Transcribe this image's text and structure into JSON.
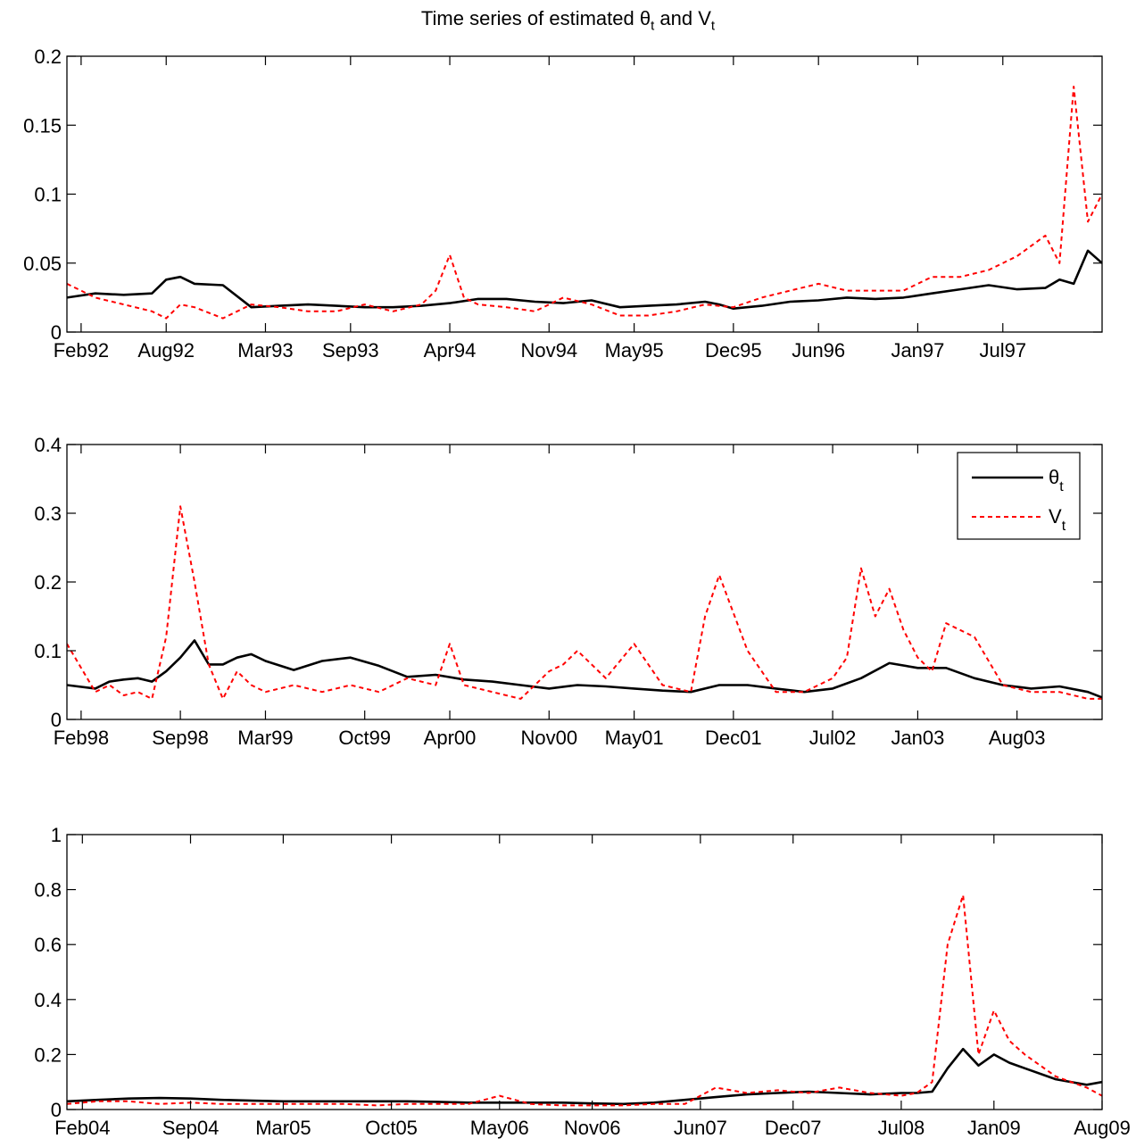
{
  "figure": {
    "title_text": "Time series of estimated ",
    "title_theta": "θ",
    "title_theta_sub": "t",
    "title_and": " and V",
    "title_v_sub": "t"
  },
  "legend": {
    "entries": [
      {
        "symbol": "θ",
        "sub": "t",
        "color": "#000000",
        "style": "solid"
      },
      {
        "symbol": "V",
        "sub": "t",
        "color": "#ff0000",
        "style": "dotted"
      }
    ]
  },
  "colors": {
    "theta": "#000000",
    "v": "#ff0000",
    "axis": "#000000",
    "background": "#ffffff"
  },
  "chart_data": [
    {
      "type": "line",
      "x_ticks": [
        "Feb92",
        "Aug92",
        "Mar93",
        "Sep93",
        "Apr94",
        "Nov94",
        "May95",
        "Dec95",
        "Jun96",
        "Jan97",
        "Jul97"
      ],
      "x_range": [
        "Jan92",
        "Feb98"
      ],
      "ylim": [
        0,
        0.2
      ],
      "y_ticks": [
        "0",
        "0.05",
        "0.1",
        "0.15",
        "0.2"
      ],
      "grid": false,
      "series": [
        {
          "name": "θt",
          "style": "solid",
          "color": "#000000",
          "x": [
            "Jan92",
            "Mar92",
            "May92",
            "Jul92",
            "Aug92",
            "Sep92",
            "Oct92",
            "Dec92",
            "Feb93",
            "Apr93",
            "Jun93",
            "Aug93",
            "Oct93",
            "Dec93",
            "Feb94",
            "Apr94",
            "Jun94",
            "Aug94",
            "Oct94",
            "Dec94",
            "Feb95",
            "Apr95",
            "Jun95",
            "Aug95",
            "Oct95",
            "Nov95",
            "Dec95",
            "Feb96",
            "Apr96",
            "Jun96",
            "Aug96",
            "Oct96",
            "Dec96",
            "Feb97",
            "Apr97",
            "Jun97",
            "Aug97",
            "Oct97",
            "Nov97",
            "Dec97",
            "Jan98",
            "Feb98"
          ],
          "values": [
            0.025,
            0.028,
            0.027,
            0.028,
            0.038,
            0.04,
            0.035,
            0.034,
            0.018,
            0.019,
            0.02,
            0.019,
            0.018,
            0.018,
            0.019,
            0.021,
            0.024,
            0.024,
            0.022,
            0.021,
            0.023,
            0.018,
            0.019,
            0.02,
            0.022,
            0.02,
            0.017,
            0.019,
            0.022,
            0.023,
            0.025,
            0.024,
            0.025,
            0.028,
            0.031,
            0.034,
            0.031,
            0.032,
            0.038,
            0.035,
            0.059,
            0.05
          ]
        },
        {
          "name": "Vt",
          "style": "dotted",
          "color": "#ff0000",
          "x": [
            "Jan92",
            "Mar92",
            "May92",
            "Jul92",
            "Aug92",
            "Sep92",
            "Oct92",
            "Dec92",
            "Feb93",
            "Apr93",
            "Jun93",
            "Aug93",
            "Oct93",
            "Dec93",
            "Feb94",
            "Mar94",
            "Apr94",
            "May94",
            "Jun94",
            "Aug94",
            "Oct94",
            "Dec94",
            "Feb95",
            "Apr95",
            "Jun95",
            "Aug95",
            "Oct95",
            "Dec95",
            "Feb96",
            "Apr96",
            "Jun96",
            "Aug96",
            "Oct96",
            "Dec96",
            "Feb97",
            "Apr97",
            "Jun97",
            "Aug97",
            "Oct97",
            "Nov97",
            "Dec97",
            "Jan98",
            "Feb98"
          ],
          "values": [
            0.035,
            0.025,
            0.02,
            0.015,
            0.01,
            0.02,
            0.018,
            0.01,
            0.02,
            0.018,
            0.015,
            0.015,
            0.02,
            0.015,
            0.02,
            0.03,
            0.056,
            0.025,
            0.02,
            0.018,
            0.015,
            0.025,
            0.02,
            0.012,
            0.012,
            0.015,
            0.02,
            0.018,
            0.025,
            0.03,
            0.035,
            0.03,
            0.03,
            0.03,
            0.04,
            0.04,
            0.045,
            0.055,
            0.07,
            0.05,
            0.178,
            0.08,
            0.1
          ]
        }
      ]
    },
    {
      "type": "line",
      "x_ticks": [
        "Feb98",
        "Sep98",
        "Mar99",
        "Oct99",
        "Apr00",
        "Nov00",
        "May01",
        "Dec01",
        "Jul02",
        "Jan03",
        "Aug03"
      ],
      "x_range": [
        "Jan98",
        "Feb04"
      ],
      "ylim": [
        0,
        0.4
      ],
      "y_ticks": [
        "0",
        "0.1",
        "0.2",
        "0.3",
        "0.4"
      ],
      "grid": false,
      "legend_position": "top-right",
      "series": [
        {
          "name": "θt",
          "style": "solid",
          "color": "#000000",
          "x": [
            "Jan98",
            "Mar98",
            "Apr98",
            "May98",
            "Jun98",
            "Jul98",
            "Aug98",
            "Sep98",
            "Oct98",
            "Nov98",
            "Dec98",
            "Jan99",
            "Feb99",
            "Mar99",
            "May99",
            "Jul99",
            "Sep99",
            "Nov99",
            "Jan00",
            "Mar00",
            "May00",
            "Jul00",
            "Sep00",
            "Nov00",
            "Jan01",
            "Mar01",
            "May01",
            "Jul01",
            "Sep01",
            "Nov01",
            "Jan02",
            "Mar02",
            "May02",
            "Jul02",
            "Sep02",
            "Nov02",
            "Jan03",
            "Mar03",
            "May03",
            "Jul03",
            "Sep03",
            "Nov03",
            "Jan04",
            "Feb04"
          ],
          "values": [
            0.05,
            0.045,
            0.055,
            0.058,
            0.06,
            0.055,
            0.07,
            0.09,
            0.115,
            0.08,
            0.08,
            0.09,
            0.095,
            0.085,
            0.072,
            0.085,
            0.09,
            0.078,
            0.062,
            0.065,
            0.058,
            0.055,
            0.05,
            0.045,
            0.05,
            0.048,
            0.045,
            0.042,
            0.04,
            0.05,
            0.05,
            0.045,
            0.04,
            0.045,
            0.06,
            0.082,
            0.075,
            0.075,
            0.06,
            0.05,
            0.045,
            0.048,
            0.04,
            0.032
          ]
        },
        {
          "name": "Vt",
          "style": "dotted",
          "color": "#ff0000",
          "x": [
            "Jan98",
            "Mar98",
            "Apr98",
            "May98",
            "Jun98",
            "Jul98",
            "Aug98",
            "Sep98",
            "Oct98",
            "Nov98",
            "Dec98",
            "Jan99",
            "Feb99",
            "Mar99",
            "May99",
            "Jul99",
            "Sep99",
            "Nov99",
            "Jan00",
            "Mar00",
            "Apr00",
            "May00",
            "Jul00",
            "Sep00",
            "Nov00",
            "Dec00",
            "Jan01",
            "Mar01",
            "May01",
            "Jul01",
            "Sep01",
            "Oct01",
            "Nov01",
            "Jan02",
            "Mar02",
            "May02",
            "Jul02",
            "Aug02",
            "Sep02",
            "Oct02",
            "Nov02",
            "Dec02",
            "Jan03",
            "Feb03",
            "Mar03",
            "May03",
            "Jul03",
            "Sep03",
            "Nov03",
            "Jan04",
            "Feb04"
          ],
          "values": [
            0.11,
            0.04,
            0.05,
            0.035,
            0.04,
            0.03,
            0.12,
            0.31,
            0.2,
            0.08,
            0.03,
            0.07,
            0.05,
            0.04,
            0.05,
            0.04,
            0.05,
            0.04,
            0.06,
            0.05,
            0.11,
            0.05,
            0.04,
            0.03,
            0.07,
            0.08,
            0.1,
            0.06,
            0.11,
            0.05,
            0.04,
            0.15,
            0.21,
            0.1,
            0.04,
            0.04,
            0.06,
            0.09,
            0.22,
            0.15,
            0.19,
            0.13,
            0.09,
            0.07,
            0.14,
            0.12,
            0.05,
            0.04,
            0.04,
            0.03,
            0.03
          ]
        }
      ]
    },
    {
      "type": "line",
      "x_ticks": [
        "Feb04",
        "Sep04",
        "Mar05",
        "Oct05",
        "May06",
        "Nov06",
        "Jun07",
        "Dec07",
        "Jul08",
        "Jan09",
        "Aug09"
      ],
      "x_range": [
        "Jan04",
        "Aug09"
      ],
      "ylim": [
        0,
        1
      ],
      "y_ticks": [
        "0",
        "0.2",
        "0.4",
        "0.6",
        "0.8",
        "1"
      ],
      "grid": false,
      "series": [
        {
          "name": "θt",
          "style": "solid",
          "color": "#000000",
          "x": [
            "Jan04",
            "Mar04",
            "May04",
            "Jul04",
            "Sep04",
            "Nov04",
            "Jan05",
            "Mar05",
            "May05",
            "Jul05",
            "Sep05",
            "Nov05",
            "Jan06",
            "Mar06",
            "May06",
            "Jul06",
            "Sep06",
            "Nov06",
            "Jan07",
            "Mar07",
            "May07",
            "Jul07",
            "Sep07",
            "Nov07",
            "Jan08",
            "Mar08",
            "May08",
            "Jul08",
            "Aug08",
            "Sep08",
            "Oct08",
            "Nov08",
            "Dec08",
            "Jan09",
            "Feb09",
            "Mar09",
            "May09",
            "Jul09",
            "Aug09"
          ],
          "values": [
            0.03,
            0.035,
            0.04,
            0.042,
            0.04,
            0.035,
            0.032,
            0.03,
            0.03,
            0.03,
            0.03,
            0.03,
            0.028,
            0.025,
            0.025,
            0.025,
            0.025,
            0.022,
            0.02,
            0.025,
            0.035,
            0.045,
            0.055,
            0.06,
            0.065,
            0.06,
            0.055,
            0.06,
            0.06,
            0.065,
            0.15,
            0.22,
            0.16,
            0.2,
            0.17,
            0.15,
            0.11,
            0.09,
            0.1
          ]
        },
        {
          "name": "Vt",
          "style": "dotted",
          "color": "#ff0000",
          "x": [
            "Jan04",
            "Mar04",
            "May04",
            "Jul04",
            "Sep04",
            "Nov04",
            "Jan05",
            "Mar05",
            "May05",
            "Jul05",
            "Sep05",
            "Nov05",
            "Jan06",
            "Mar06",
            "May06",
            "Jul06",
            "Sep06",
            "Nov06",
            "Jan07",
            "Mar07",
            "May07",
            "Jul07",
            "Sep07",
            "Nov07",
            "Jan08",
            "Mar08",
            "May08",
            "Jul08",
            "Aug08",
            "Sep08",
            "Oct08",
            "Nov08",
            "Dec08",
            "Jan09",
            "Feb09",
            "Mar09",
            "May09",
            "Jul09",
            "Aug09"
          ],
          "values": [
            0.02,
            0.03,
            0.03,
            0.02,
            0.025,
            0.02,
            0.02,
            0.02,
            0.02,
            0.02,
            0.015,
            0.02,
            0.02,
            0.02,
            0.05,
            0.02,
            0.015,
            0.015,
            0.015,
            0.02,
            0.02,
            0.08,
            0.06,
            0.07,
            0.06,
            0.08,
            0.06,
            0.05,
            0.06,
            0.1,
            0.6,
            0.78,
            0.2,
            0.36,
            0.25,
            0.2,
            0.12,
            0.08,
            0.05
          ]
        }
      ]
    }
  ]
}
